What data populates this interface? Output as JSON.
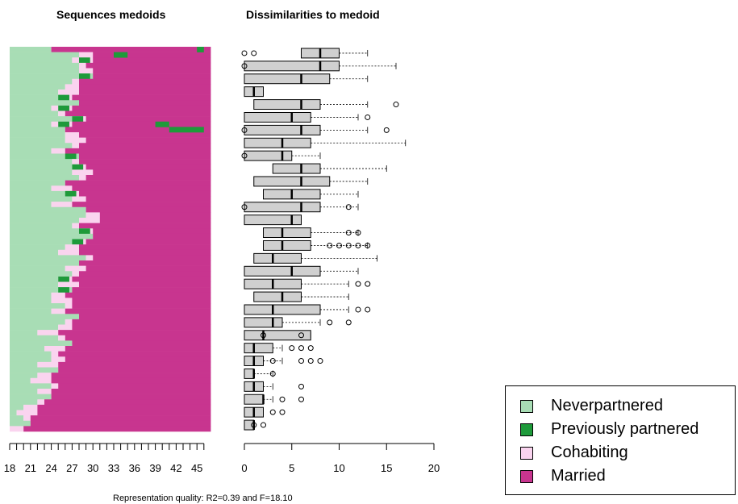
{
  "chart_data": [
    {
      "type": "heatmap",
      "title": "Sequences medoids",
      "x_ticks": [
        "18",
        "21",
        "24",
        "27",
        "30",
        "33",
        "36",
        "39",
        "42",
        "45"
      ],
      "states": [
        {
          "name": "Neverpartnered",
          "color": "#a8ddb5"
        },
        {
          "name": "Previously partnered",
          "color": "#1e9a3a"
        },
        {
          "name": "Cohabiting",
          "color": "#fad4ef"
        },
        {
          "name": "Married",
          "color": "#c8358f"
        }
      ],
      "first_marriage_age_by_row_top_to_bottom": [
        24,
        30,
        30,
        29,
        30,
        30,
        28,
        28,
        28,
        27,
        28,
        27,
        26,
        29,
        27,
        26,
        28,
        29,
        28,
        26,
        28,
        28,
        29,
        30,
        29,
        26,
        27,
        28,
        29,
        27,
        29,
        31,
        31,
        28,
        30,
        30,
        29,
        28,
        28,
        30,
        28,
        29,
        28,
        27,
        28,
        27,
        26,
        27,
        27,
        26,
        28,
        27,
        27,
        25,
        26,
        27,
        26,
        25,
        26,
        25,
        25,
        24,
        24,
        25,
        24,
        24,
        23,
        22,
        22,
        21,
        21,
        20
      ]
    },
    {
      "type": "box",
      "title": "Dissimilarities to medoid",
      "xlim": [
        0,
        20
      ],
      "x_ticks": [
        "0",
        "5",
        "10",
        "15",
        "20"
      ],
      "boxes_top_to_bottom": [
        {
          "q1": 6,
          "median": 8,
          "q3": 10,
          "max": 13,
          "outliers": [
            0,
            1
          ]
        },
        {
          "q1": 0,
          "median": 8,
          "q3": 10,
          "max": 16,
          "outliers": [
            0
          ]
        },
        {
          "q1": 0,
          "median": 6,
          "q3": 9,
          "max": 13,
          "outliers": []
        },
        {
          "q1": 0,
          "median": 1,
          "q3": 2,
          "max": 2,
          "outliers": []
        },
        {
          "q1": 1,
          "median": 6,
          "q3": 8,
          "max": 13,
          "outliers": [
            16
          ]
        },
        {
          "q1": 0,
          "median": 5,
          "q3": 7,
          "max": 12,
          "outliers": [
            13
          ]
        },
        {
          "q1": 0,
          "median": 6,
          "q3": 8,
          "max": 13,
          "outliers": [
            0,
            15
          ]
        },
        {
          "q1": 0,
          "median": 4,
          "q3": 7,
          "max": 17,
          "outliers": []
        },
        {
          "q1": 0,
          "median": 4,
          "q3": 5,
          "max": 8,
          "outliers": [
            0
          ]
        },
        {
          "q1": 3,
          "median": 6,
          "q3": 8,
          "max": 15,
          "outliers": []
        },
        {
          "q1": 1,
          "median": 6,
          "q3": 9,
          "max": 13,
          "outliers": []
        },
        {
          "q1": 2,
          "median": 5,
          "q3": 8,
          "max": 12,
          "outliers": []
        },
        {
          "q1": 0,
          "median": 6,
          "q3": 8,
          "max": 12,
          "outliers": [
            0,
            11
          ]
        },
        {
          "q1": 0,
          "median": 5,
          "q3": 6,
          "max": 6,
          "outliers": []
        },
        {
          "q1": 2,
          "median": 4,
          "q3": 7,
          "max": 12,
          "outliers": [
            11,
            12
          ]
        },
        {
          "q1": 2,
          "median": 4,
          "q3": 7,
          "max": 13,
          "outliers": [
            9,
            10,
            11,
            12,
            13
          ]
        },
        {
          "q1": 1,
          "median": 3,
          "q3": 6,
          "max": 14,
          "outliers": []
        },
        {
          "q1": 0,
          "median": 5,
          "q3": 8,
          "max": 12,
          "outliers": []
        },
        {
          "q1": 0,
          "median": 3,
          "q3": 6,
          "max": 11,
          "outliers": [
            12,
            13
          ]
        },
        {
          "q1": 1,
          "median": 4,
          "q3": 6,
          "max": 11,
          "outliers": []
        },
        {
          "q1": 0,
          "median": 3,
          "q3": 8,
          "max": 11,
          "outliers": [
            12,
            13
          ]
        },
        {
          "q1": 0,
          "median": 3,
          "q3": 4,
          "max": 8,
          "outliers": [
            9,
            11
          ]
        },
        {
          "q1": 0,
          "median": 2,
          "q3": 7,
          "max": 7,
          "outliers": [
            2,
            6
          ]
        },
        {
          "q1": 0,
          "median": 1,
          "q3": 3,
          "max": 4,
          "outliers": [
            5,
            6,
            7
          ]
        },
        {
          "q1": 0,
          "median": 1,
          "q3": 2,
          "max": 4,
          "outliers": [
            3,
            6,
            7,
            8
          ]
        },
        {
          "q1": 0,
          "median": 1,
          "q3": 1,
          "max": 3,
          "outliers": [
            3
          ]
        },
        {
          "q1": 0,
          "median": 1,
          "q3": 2,
          "max": 3,
          "outliers": [
            6
          ]
        },
        {
          "q1": 0,
          "median": 2,
          "q3": 2,
          "max": 3,
          "outliers": [
            4,
            6
          ]
        },
        {
          "q1": 0,
          "median": 1,
          "q3": 2,
          "max": 2,
          "outliers": [
            3,
            4
          ]
        },
        {
          "q1": 0,
          "median": 1,
          "q3": 1,
          "max": 1,
          "outliers": [
            1,
            2
          ]
        }
      ]
    }
  ],
  "legend": [
    {
      "label": "Neverpartnered",
      "color": "#a8ddb5"
    },
    {
      "label": "Previously partnered",
      "color": "#1e9a3a"
    },
    {
      "label": "Cohabiting",
      "color": "#fad4ef"
    },
    {
      "label": "Married",
      "color": "#c8358f"
    }
  ],
  "footer": "Representation quality: R2=0.39 and F=18.10"
}
